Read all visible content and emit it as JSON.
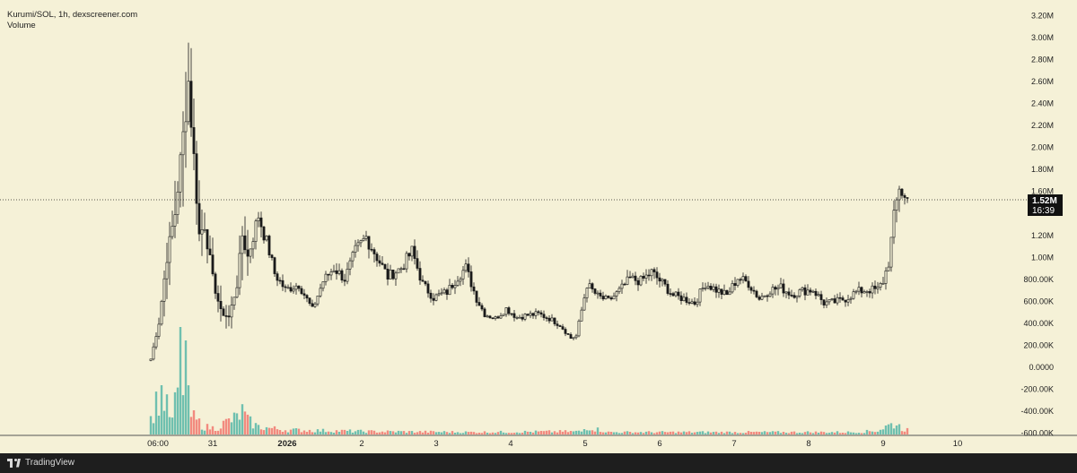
{
  "chart_data": {
    "type": "candlestick",
    "title": "Kurumi/SOL, 1h, dexscreener.com",
    "subtitle": "Volume",
    "y_ticks": [
      "3.20M",
      "3.00M",
      "2.80M",
      "2.60M",
      "2.40M",
      "2.20M",
      "2.00M",
      "1.80M",
      "1.60M",
      "1.40M",
      "1.20M",
      "1.00M",
      "800.00K",
      "600.00K",
      "400.00K",
      "200.00K",
      "0.0000",
      "-200.00K",
      "-400.00K",
      "-600.00K"
    ],
    "ylim": [
      -600000,
      3200000
    ],
    "x_ticks": [
      "06:00",
      "31",
      "2026",
      "2",
      "3",
      "4",
      "5",
      "6",
      "7",
      "8",
      "9",
      "10"
    ],
    "last_price": 1520000,
    "last_price_label": "1.52M",
    "countdown_label": "16:39",
    "brand": "TradingView",
    "colors": {
      "background": "#f5f1d7",
      "up": "#26a69a",
      "down": "#ef5350",
      "candle": "#1a1a1a",
      "text": "#222222"
    },
    "anchors": [
      [
        0,
        70000
      ],
      [
        3,
        400000
      ],
      [
        6,
        1000000
      ],
      [
        9,
        1400000
      ],
      [
        12,
        2100000
      ],
      [
        14,
        2600000
      ],
      [
        16,
        1900000
      ],
      [
        18,
        1200000
      ],
      [
        20,
        1300000
      ],
      [
        23,
        800000
      ],
      [
        26,
        500000
      ],
      [
        29,
        450000
      ],
      [
        32,
        750000
      ],
      [
        34,
        1200000
      ],
      [
        36,
        1000000
      ],
      [
        40,
        1380000
      ],
      [
        44,
        1050000
      ],
      [
        46,
        850000
      ],
      [
        50,
        700000
      ],
      [
        55,
        750000
      ],
      [
        60,
        520000
      ],
      [
        64,
        780000
      ],
      [
        68,
        900000
      ],
      [
        72,
        800000
      ],
      [
        76,
        1050000
      ],
      [
        80,
        1180000
      ],
      [
        84,
        1000000
      ],
      [
        88,
        820000
      ],
      [
        93,
        900000
      ],
      [
        97,
        1050000
      ],
      [
        101,
        750000
      ],
      [
        105,
        630000
      ],
      [
        110,
        680000
      ],
      [
        114,
        820000
      ],
      [
        117,
        900000
      ],
      [
        121,
        620000
      ],
      [
        124,
        480000
      ],
      [
        128,
        440000
      ],
      [
        132,
        530000
      ],
      [
        136,
        450000
      ],
      [
        140,
        470000
      ],
      [
        144,
        480000
      ],
      [
        148,
        440000
      ],
      [
        152,
        380000
      ],
      [
        156,
        260000
      ],
      [
        158,
        280000
      ],
      [
        162,
        750000
      ],
      [
        166,
        640000
      ],
      [
        170,
        600000
      ],
      [
        174,
        690000
      ],
      [
        178,
        800000
      ],
      [
        182,
        780000
      ],
      [
        186,
        860000
      ],
      [
        190,
        760000
      ],
      [
        194,
        650000
      ],
      [
        198,
        620000
      ],
      [
        202,
        580000
      ],
      [
        206,
        760000
      ],
      [
        210,
        700000
      ],
      [
        214,
        650000
      ],
      [
        218,
        810000
      ],
      [
        222,
        760000
      ],
      [
        226,
        620000
      ],
      [
        230,
        700000
      ],
      [
        234,
        720000
      ],
      [
        238,
        660000
      ],
      [
        242,
        690000
      ],
      [
        246,
        700000
      ],
      [
        250,
        580000
      ],
      [
        254,
        590000
      ],
      [
        258,
        620000
      ],
      [
        262,
        680000
      ],
      [
        266,
        700000
      ],
      [
        270,
        700000
      ],
      [
        272,
        780000
      ],
      [
        274,
        950000
      ],
      [
        276,
        1350000
      ],
      [
        278,
        1650000
      ],
      [
        280,
        1530000
      ],
      [
        281,
        1520000
      ]
    ],
    "volume_profile": [
      [
        0,
        20
      ],
      [
        2,
        40
      ],
      [
        4,
        55
      ],
      [
        6,
        35
      ],
      [
        8,
        18
      ],
      [
        11,
        80
      ],
      [
        13,
        60
      ],
      [
        15,
        25
      ],
      [
        17,
        18
      ],
      [
        20,
        10
      ],
      [
        24,
        8
      ],
      [
        28,
        16
      ],
      [
        32,
        22
      ],
      [
        34,
        30
      ],
      [
        36,
        18
      ],
      [
        40,
        10
      ],
      [
        50,
        6
      ],
      [
        80,
        4
      ],
      [
        120,
        3
      ],
      [
        160,
        4
      ],
      [
        162,
        10
      ],
      [
        170,
        3
      ],
      [
        220,
        3
      ],
      [
        262,
        3
      ],
      [
        270,
        5
      ],
      [
        274,
        12
      ],
      [
        277,
        14
      ],
      [
        279,
        8
      ],
      [
        281,
        6
      ]
    ]
  }
}
